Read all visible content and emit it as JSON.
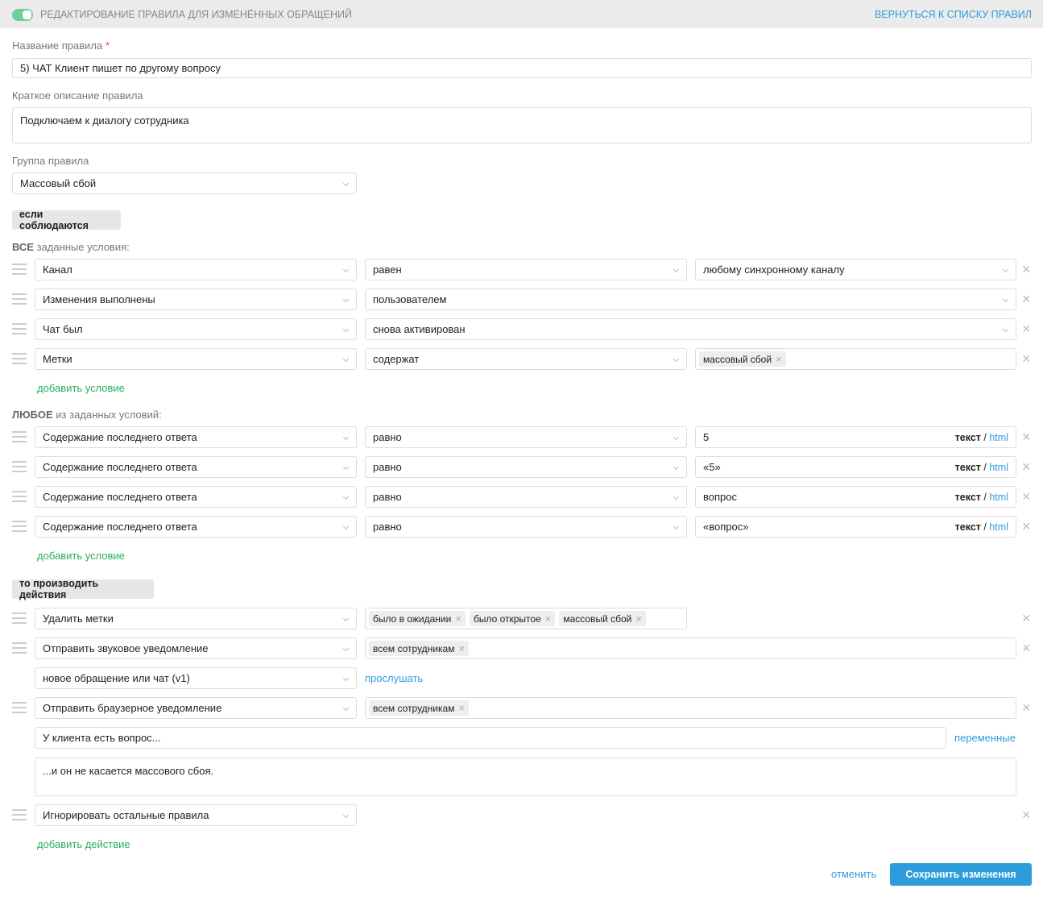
{
  "header": {
    "title": "Редактирование правила для изменённых обращений",
    "back_link": "Вернуться к списку правил",
    "toggle_on": true
  },
  "form": {
    "name_label": "Название правила",
    "required_mark": "*",
    "name_value": "5) ЧАТ Клиент пишет по другому вопросу",
    "desc_label": "Краткое описание правила",
    "desc_value": "Подключаем к диалогу сотрудника",
    "group_label": "Группа правила",
    "group_value": "Массовый сбой"
  },
  "conditions": {
    "badge": "если соблюдаются",
    "all_bold": "ВСЕ",
    "all_rest": " заданные условия:",
    "all": [
      {
        "field": "Канал",
        "op": "равен",
        "value": "любому синхронному каналу",
        "type": "select"
      },
      {
        "field": "Изменения выполнены",
        "op": "пользователем",
        "type": "wide"
      },
      {
        "field": "Чат был",
        "op": "снова активирован",
        "type": "wide"
      },
      {
        "field": "Метки",
        "op": "содержат",
        "tags": [
          "массовый сбой"
        ],
        "type": "tags"
      }
    ],
    "add_condition": "добавить условие",
    "any_bold": "ЛЮБОЕ",
    "any_rest": " из заданных условий:",
    "any": [
      {
        "field": "Содержание последнего ответа",
        "op": "равно",
        "value": "5"
      },
      {
        "field": "Содержание последнего ответа",
        "op": "равно",
        "value": "«5»"
      },
      {
        "field": "Содержание последнего ответа",
        "op": "равно",
        "value": "вопрос"
      },
      {
        "field": "Содержание последнего ответа",
        "op": "равно",
        "value": "«вопрос»"
      }
    ],
    "text_mode": "текст",
    "separator": "/",
    "html_mode": "html"
  },
  "actions": {
    "badge": "то производить действия",
    "remove_tags": {
      "action": "Удалить метки",
      "tags": [
        "было в ожидании",
        "было открытое",
        "массовый сбой"
      ]
    },
    "sound": {
      "action": "Отправить звуковое уведомление",
      "tags": [
        "всем сотрудникам"
      ],
      "sound": "новое обращение или чат (v1)",
      "listen": "прослушать"
    },
    "browser": {
      "action": "Отправить браузерное уведомление",
      "tags": [
        "всем сотрудникам"
      ],
      "title": "У клиента есть вопрос...",
      "variables": "переменные",
      "body": "...и он не касается массового сбоя."
    },
    "ignore": {
      "action": "Игнорировать остальные правила"
    },
    "add_action": "добавить действие"
  },
  "footer": {
    "cancel": "отменить",
    "save": "Сохранить изменения"
  },
  "colors": {
    "accent": "#2d9cdb",
    "green": "#27ae60",
    "toggle": "#6fcf97"
  }
}
